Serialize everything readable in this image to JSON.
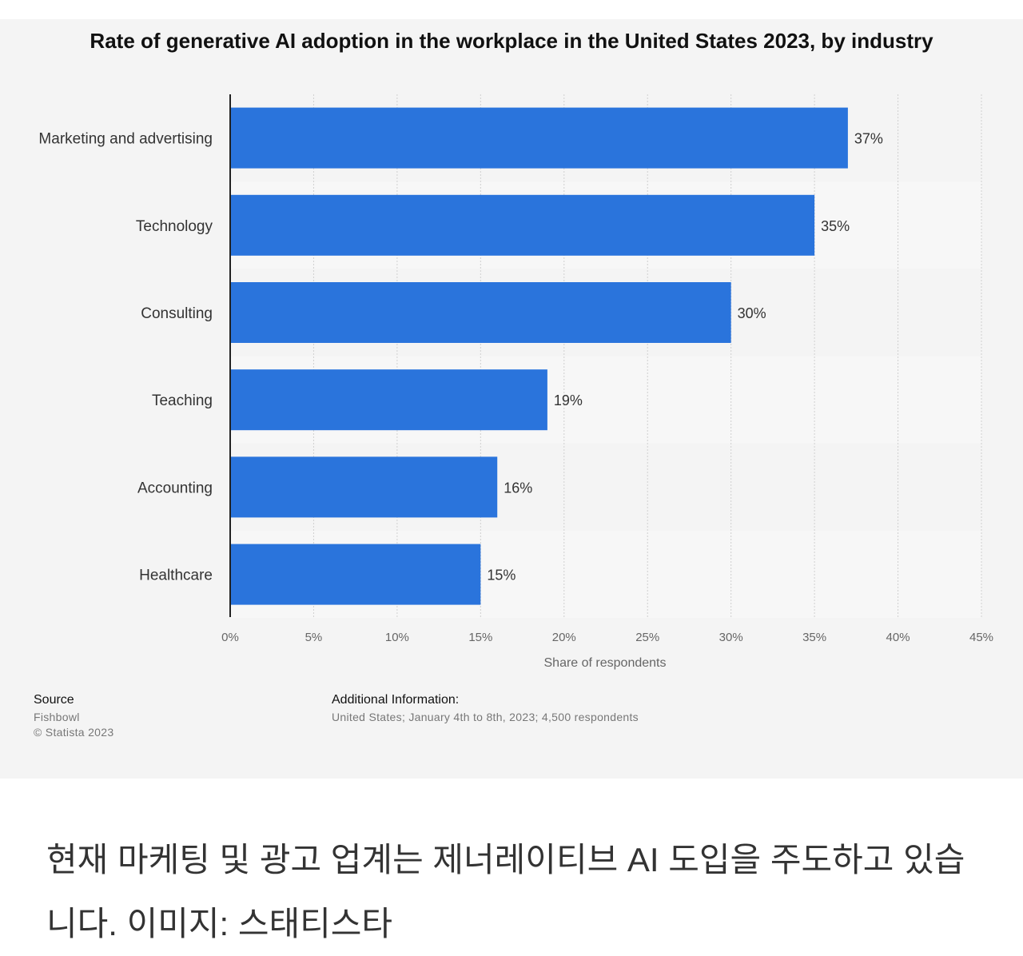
{
  "chart_data": {
    "type": "bar",
    "orientation": "horizontal",
    "title": "Rate of generative AI adoption in the workplace in the United States 2023, by industry",
    "categories": [
      "Marketing and advertising",
      "Technology",
      "Consulting",
      "Teaching",
      "Accounting",
      "Healthcare"
    ],
    "values": [
      37,
      35,
      30,
      19,
      16,
      15
    ],
    "value_labels": [
      "37%",
      "35%",
      "30%",
      "19%",
      "16%",
      "15%"
    ],
    "xlabel": "Share of respondents",
    "ylabel": "",
    "xlim": [
      0,
      45
    ],
    "ticks": [
      0,
      5,
      10,
      15,
      20,
      25,
      30,
      35,
      40,
      45
    ],
    "tick_labels": [
      "0%",
      "5%",
      "10%",
      "15%",
      "20%",
      "25%",
      "30%",
      "35%",
      "40%",
      "45%"
    ],
    "grid": true,
    "bar_color": "#2a74dc"
  },
  "source": {
    "heading": "Source",
    "name": "Fishbowl",
    "copyright": "© Statista 2023"
  },
  "additional_info": {
    "heading": "Additional Information:",
    "text": "United States; January 4th to 8th, 2023; 4,500 respondents"
  },
  "caption": "현재 마케팅 및 광고 업계는 제너레이티브 AI 도입을 주도하고 있습니다. 이미지: 스태티스타"
}
